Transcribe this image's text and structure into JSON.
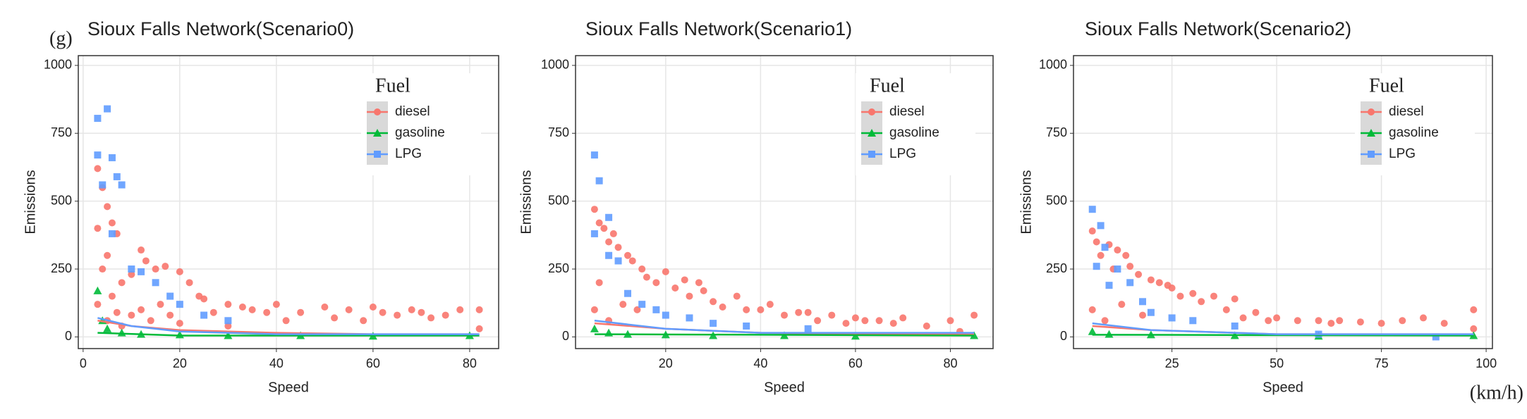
{
  "panel_label": "(g)",
  "unit_label": "(km/h)",
  "chart_data": [
    {
      "type": "scatter",
      "title": "Sioux Falls Network(Scenario0)",
      "xlabel": "Speed",
      "ylabel": "Emissions",
      "xlim": [
        -1,
        86
      ],
      "ylim": [
        -43,
        1036
      ],
      "xticks": [
        0,
        20,
        40,
        60,
        80
      ],
      "yticks": [
        0,
        250,
        500,
        750,
        1000
      ],
      "grid": true,
      "legend": "top-right",
      "legend_title": "Fuel",
      "series": [
        {
          "name": "diesel",
          "color": "#F8766D",
          "shape": "circle",
          "x": [
            3,
            3,
            3,
            4,
            4,
            5,
            5,
            5,
            6,
            6,
            7,
            7,
            8,
            8,
            10,
            10,
            12,
            12,
            13,
            14,
            15,
            16,
            17,
            18,
            20,
            20,
            22,
            24,
            25,
            27,
            30,
            30,
            33,
            35,
            38,
            40,
            42,
            45,
            50,
            52,
            55,
            58,
            60,
            62,
            65,
            68,
            70,
            72,
            75,
            78,
            82,
            82
          ],
          "y": [
            620,
            400,
            120,
            550,
            250,
            480,
            300,
            60,
            420,
            150,
            380,
            90,
            200,
            40,
            230,
            80,
            320,
            100,
            280,
            60,
            250,
            120,
            260,
            80,
            240,
            50,
            200,
            150,
            140,
            90,
            120,
            40,
            110,
            100,
            90,
            120,
            60,
            90,
            110,
            70,
            100,
            60,
            110,
            90,
            80,
            100,
            90,
            70,
            80,
            100,
            100,
            30
          ],
          "trend": {
            "x": [
              3,
              10,
              20,
              40,
              60,
              82
            ],
            "y": [
              60,
              40,
              25,
              15,
              10,
              10
            ]
          }
        },
        {
          "name": "gasoline",
          "color": "#00BA38",
          "shape": "triangle",
          "x": [
            3,
            4,
            5,
            8,
            12,
            20,
            30,
            45,
            60,
            80
          ],
          "y": [
            170,
            60,
            30,
            15,
            10,
            8,
            5,
            5,
            3,
            5
          ],
          "trend": {
            "x": [
              3,
              20,
              82
            ],
            "y": [
              15,
              5,
              5
            ]
          }
        },
        {
          "name": "LPG",
          "color": "#619CFF",
          "shape": "square",
          "x": [
            3,
            3,
            4,
            5,
            6,
            6,
            7,
            8,
            10,
            12,
            15,
            18,
            20,
            25,
            30
          ],
          "y": [
            805,
            670,
            560,
            840,
            660,
            380,
            590,
            560,
            250,
            240,
            200,
            150,
            120,
            80,
            60
          ],
          "trend": {
            "x": [
              3,
              10,
              20,
              40,
              82
            ],
            "y": [
              70,
              40,
              20,
              10,
              10
            ]
          }
        }
      ]
    },
    {
      "type": "scatter",
      "title": "Sioux Falls Network(Scenario1)",
      "xlabel": "Speed",
      "ylabel": "Emissions",
      "xlim": [
        1,
        89
      ],
      "ylim": [
        -43,
        1036
      ],
      "xticks": [
        20,
        40,
        60,
        80
      ],
      "yticks": [
        0,
        250,
        500,
        750,
        1000
      ],
      "grid": true,
      "legend": "top-right",
      "legend_title": "Fuel",
      "series": [
        {
          "name": "diesel",
          "color": "#F8766D",
          "shape": "circle",
          "x": [
            5,
            5,
            6,
            6,
            7,
            8,
            8,
            9,
            10,
            11,
            12,
            13,
            14,
            15,
            16,
            18,
            20,
            22,
            24,
            25,
            27,
            28,
            30,
            32,
            35,
            37,
            40,
            42,
            45,
            48,
            50,
            52,
            55,
            58,
            60,
            62,
            65,
            68,
            70,
            75,
            80,
            82,
            85
          ],
          "y": [
            470,
            100,
            420,
            200,
            400,
            350,
            60,
            380,
            330,
            120,
            300,
            280,
            100,
            250,
            220,
            200,
            240,
            180,
            210,
            150,
            200,
            170,
            130,
            110,
            150,
            100,
            100,
            120,
            80,
            90,
            90,
            60,
            80,
            50,
            70,
            60,
            60,
            50,
            70,
            40,
            60,
            20,
            80
          ],
          "trend": {
            "x": [
              5,
              20,
              40,
              60,
              85
            ],
            "y": [
              50,
              30,
              15,
              10,
              10
            ]
          }
        },
        {
          "name": "gasoline",
          "color": "#00BA38",
          "shape": "triangle",
          "x": [
            5,
            8,
            12,
            20,
            30,
            45,
            60,
            85
          ],
          "y": [
            30,
            15,
            10,
            8,
            5,
            5,
            3,
            5
          ],
          "trend": {
            "x": [
              5,
              85
            ],
            "y": [
              10,
              5
            ]
          }
        },
        {
          "name": "LPG",
          "color": "#619CFF",
          "shape": "square",
          "x": [
            5,
            6,
            5,
            8,
            8,
            10,
            12,
            15,
            18,
            20,
            25,
            30,
            37,
            50
          ],
          "y": [
            670,
            575,
            380,
            440,
            300,
            280,
            160,
            120,
            100,
            80,
            70,
            50,
            40,
            30
          ],
          "trend": {
            "x": [
              5,
              20,
              40,
              85
            ],
            "y": [
              60,
              30,
              15,
              15
            ]
          }
        }
      ]
    },
    {
      "type": "scatter",
      "title": "Sioux Falls Network(Scenario2)",
      "xlabel": "Speed",
      "ylabel": "Emissions",
      "xlim": [
        1.5,
        101.5
      ],
      "ylim": [
        -43,
        1036
      ],
      "xticks": [
        25,
        50,
        75,
        100
      ],
      "yticks": [
        0,
        250,
        500,
        750,
        1000
      ],
      "grid": true,
      "legend": "top-right",
      "legend_title": "Fuel",
      "series": [
        {
          "name": "diesel",
          "color": "#F8766D",
          "shape": "circle",
          "x": [
            6,
            6,
            7,
            8,
            9,
            10,
            11,
            12,
            13,
            14,
            15,
            17,
            18,
            20,
            22,
            24,
            25,
            27,
            30,
            32,
            35,
            38,
            40,
            42,
            45,
            48,
            50,
            55,
            60,
            63,
            65,
            70,
            75,
            80,
            85,
            90,
            97,
            97
          ],
          "y": [
            390,
            100,
            350,
            300,
            60,
            340,
            250,
            320,
            120,
            300,
            260,
            230,
            80,
            210,
            200,
            190,
            180,
            150,
            160,
            130,
            150,
            100,
            140,
            70,
            90,
            60,
            70,
            60,
            60,
            50,
            60,
            55,
            50,
            60,
            70,
            50,
            100,
            30
          ],
          "trend": {
            "x": [
              6,
              20,
              50,
              97
            ],
            "y": [
              40,
              25,
              10,
              10
            ]
          }
        },
        {
          "name": "gasoline",
          "color": "#00BA38",
          "shape": "triangle",
          "x": [
            6,
            10,
            20,
            40,
            60,
            97
          ],
          "y": [
            20,
            10,
            8,
            5,
            3,
            5
          ],
          "trend": {
            "x": [
              6,
              97
            ],
            "y": [
              8,
              5
            ]
          }
        },
        {
          "name": "LPG",
          "color": "#619CFF",
          "shape": "square",
          "x": [
            6,
            7,
            8,
            9,
            10,
            12,
            15,
            18,
            20,
            25,
            30,
            40,
            60,
            88
          ],
          "y": [
            470,
            260,
            410,
            330,
            190,
            250,
            200,
            130,
            90,
            70,
            60,
            40,
            10,
            0
          ],
          "trend": {
            "x": [
              6,
              20,
              50,
              97
            ],
            "y": [
              50,
              25,
              10,
              10
            ]
          }
        }
      ]
    }
  ]
}
